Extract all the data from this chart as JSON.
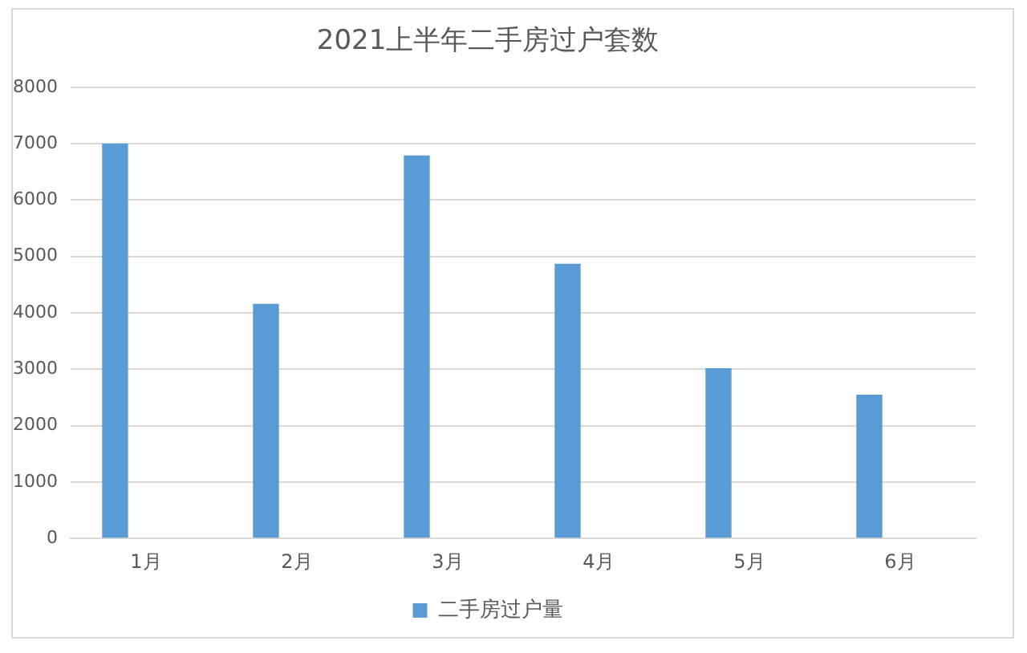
{
  "chart_data": {
    "type": "bar",
    "title": "2021上半年二手房过户套数",
    "categories": [
      "1月",
      "2月",
      "3月",
      "4月",
      "5月",
      "6月"
    ],
    "series": [
      {
        "name": "二手房过户量",
        "color": "#5b9bd5",
        "values": [
          7000,
          4160,
          6790,
          4870,
          3020,
          2550
        ]
      }
    ],
    "ylim": [
      0,
      8000
    ],
    "yticks": [
      0,
      1000,
      2000,
      3000,
      4000,
      5000,
      6000,
      7000,
      8000
    ],
    "grid": "y",
    "legend": "bottom"
  }
}
